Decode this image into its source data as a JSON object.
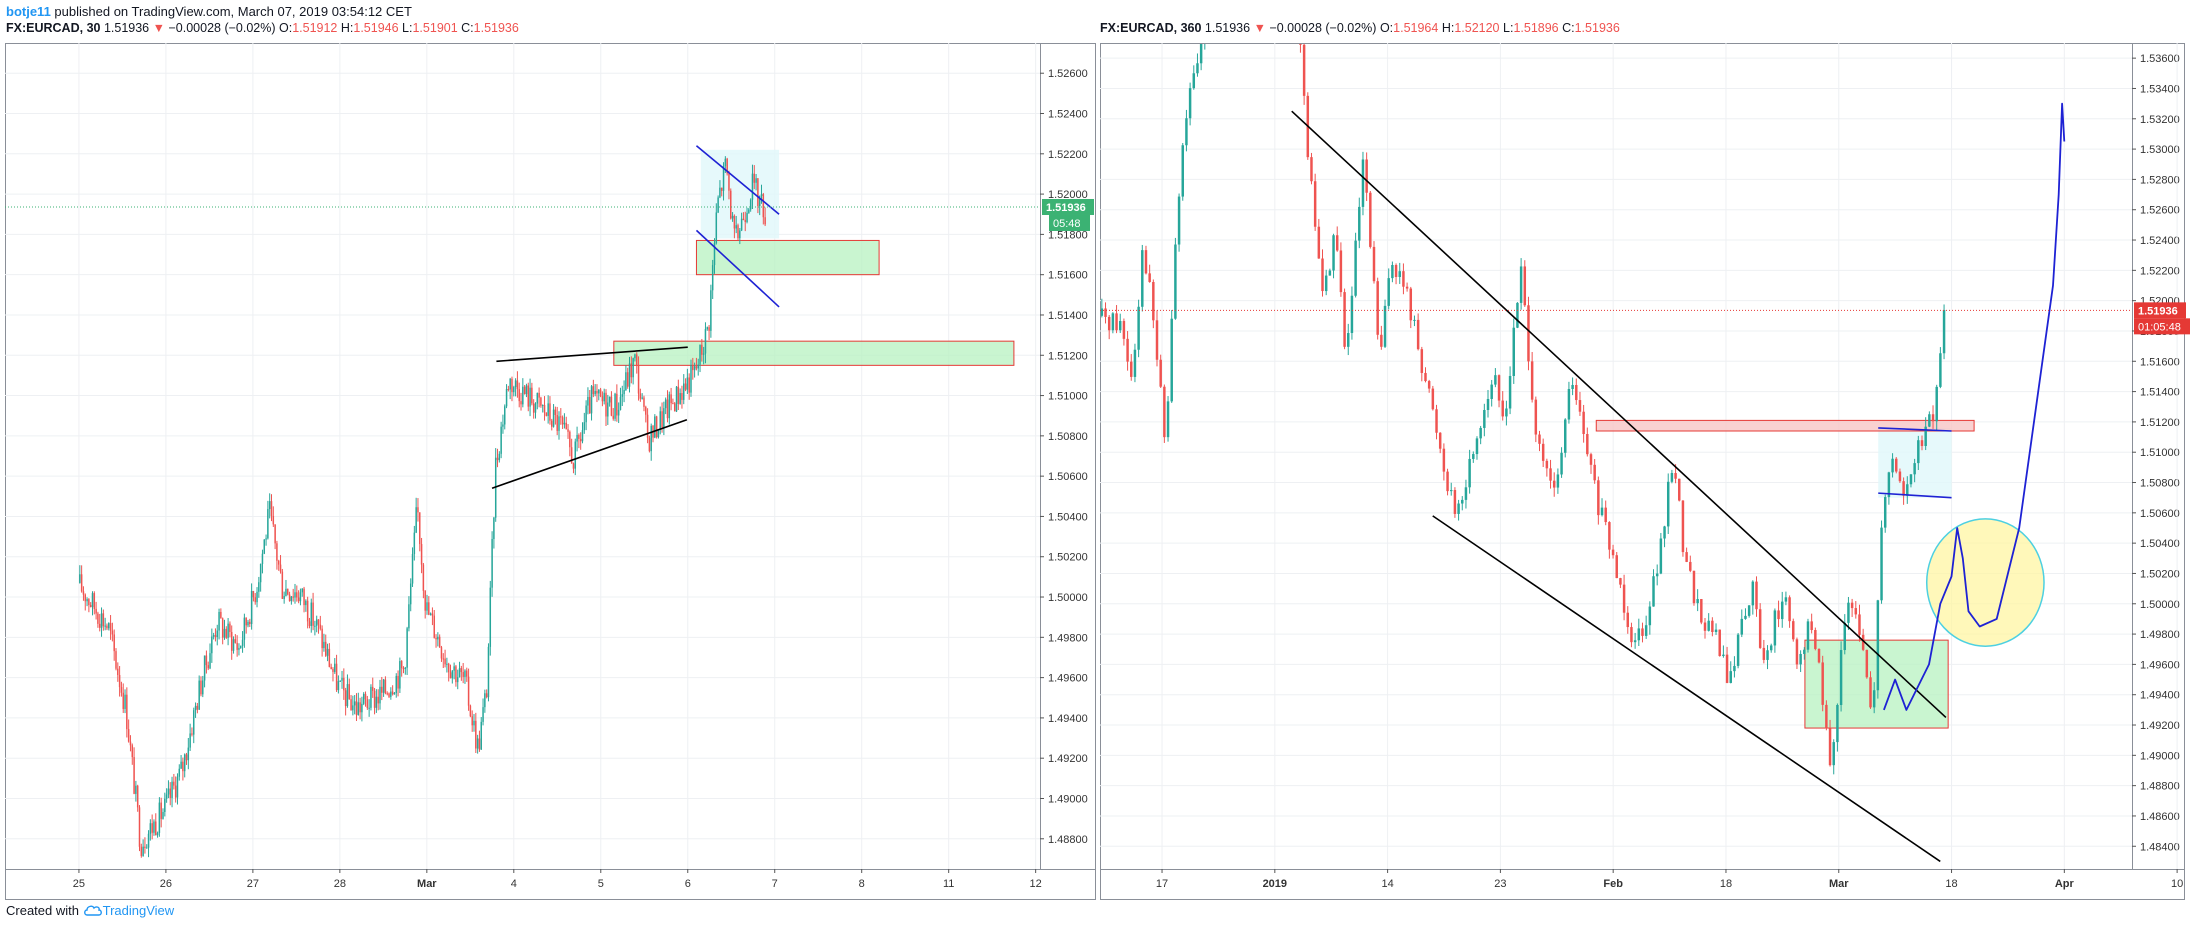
{
  "header": {
    "user": "botje11",
    "published_text": "published on TradingView.com, March 07, 2019 03:54:12 CET"
  },
  "footer": {
    "created_with": "Created with",
    "brand": "TradingView"
  },
  "colors": {
    "up": "#26a69a",
    "down": "#ef5350",
    "trendline": "#000000",
    "channel": "#1e22d4",
    "zone_fill": "#b7f2c0",
    "zone_border": "#e53935",
    "highlight": "#fff59d",
    "grid": "#eef0f3"
  },
  "chart_data": [
    {
      "type": "candlestick",
      "symbol": "FX:EURCAD",
      "interval": "30",
      "last": "1.51936",
      "change": "−0.00028 (−0.02%)",
      "change_arrow": "▼",
      "open": "1.51912",
      "high": "1.51946",
      "low": "1.51901",
      "close": "1.51936",
      "price_badge": "1.51936",
      "timer_badge": "05:48",
      "x_tick_labels": [
        "25",
        "26",
        "27",
        "28",
        "Mar",
        "4",
        "5",
        "6",
        "7",
        "8",
        "11",
        "12"
      ],
      "y_tick_labels": [
        "1.52600",
        "1.52400",
        "1.52200",
        "1.52000",
        "1.51800",
        "1.51600",
        "1.51400",
        "1.51200",
        "1.51000",
        "1.50800",
        "1.50600",
        "1.50400",
        "1.50200",
        "1.50000",
        "1.49800",
        "1.49600",
        "1.49400",
        "1.49200",
        "1.49000",
        "1.48800"
      ],
      "ylim": [
        1.4865,
        1.5275
      ],
      "xlim": [
        -0.85,
        11.05
      ],
      "price_path": [
        [
          0.0,
          1.5007
        ],
        [
          0.35,
          1.4985
        ],
        [
          0.55,
          1.4945
        ],
        [
          0.72,
          1.4878
        ],
        [
          1.0,
          1.4895
        ],
        [
          1.2,
          1.4915
        ],
        [
          1.4,
          1.4955
        ],
        [
          1.6,
          1.4988
        ],
        [
          1.85,
          1.4975
        ],
        [
          2.05,
          1.5005
        ],
        [
          2.2,
          1.5042
        ],
        [
          2.35,
          1.5005
        ],
        [
          2.55,
          1.5002
        ],
        [
          2.75,
          1.4985
        ],
        [
          3.0,
          1.4955
        ],
        [
          3.2,
          1.4945
        ],
        [
          3.5,
          1.4952
        ],
        [
          3.75,
          1.4965
        ],
        [
          3.9,
          1.5045
        ],
        [
          4.0,
          1.4995
        ],
        [
          4.25,
          1.4968
        ],
        [
          4.45,
          1.4958
        ],
        [
          4.6,
          1.4925
        ],
        [
          4.7,
          1.4955
        ],
        [
          4.8,
          1.5065
        ],
        [
          4.95,
          1.5108
        ],
        [
          5.3,
          1.5095
        ],
        [
          5.55,
          1.5085
        ],
        [
          5.7,
          1.5068
        ],
        [
          5.9,
          1.5098
        ],
        [
          6.2,
          1.5095
        ],
        [
          6.4,
          1.5118
        ],
        [
          6.55,
          1.5078
        ],
        [
          6.8,
          1.5095
        ],
        [
          7.1,
          1.5112
        ],
        [
          7.25,
          1.5135
        ],
        [
          7.35,
          1.5195
        ],
        [
          7.45,
          1.5215
        ],
        [
          7.55,
          1.5175
        ],
        [
          7.75,
          1.5205
        ],
        [
          7.9,
          1.5192
        ]
      ],
      "drawings": {
        "channel_upper": [
          [
            7.1,
            1.5224
          ],
          [
            8.05,
            1.519
          ]
        ],
        "channel_lower": [
          [
            7.1,
            1.5182
          ],
          [
            8.05,
            1.5144
          ]
        ],
        "triangle_upper": [
          [
            4.8,
            1.5117
          ],
          [
            7.0,
            1.5124
          ]
        ],
        "triangle_lower": [
          [
            4.75,
            1.5054
          ],
          [
            6.99,
            1.5088
          ]
        ],
        "zones": [
          {
            "x": [
              7.1,
              9.2
            ],
            "y": [
              1.516,
              1.5177
            ]
          },
          {
            "x": [
              6.15,
              10.75
            ],
            "y": [
              1.5115,
              1.5127
            ]
          }
        ],
        "shade": {
          "x": [
            7.15,
            8.05
          ],
          "y": [
            1.5178,
            1.5222
          ]
        }
      }
    },
    {
      "type": "candlestick",
      "symbol": "FX:EURCAD",
      "interval": "360",
      "last": "1.51936",
      "change": "−0.00028 (−0.02%)",
      "change_arrow": "▼",
      "open": "1.51964",
      "high": "1.52120",
      "low": "1.51896",
      "close": "1.51936",
      "price_badge": "1.51936",
      "timer_badge": "01:05:48",
      "x_tick_labels": [
        "17",
        "2019",
        "14",
        "23",
        "Feb",
        "18",
        "Mar",
        "18",
        "Apr",
        "10"
      ],
      "y_tick_labels": [
        "1.53600",
        "1.53400",
        "1.53200",
        "1.53000",
        "1.52800",
        "1.52600",
        "1.52400",
        "1.52200",
        "1.52000",
        "1.51800",
        "1.51600",
        "1.51400",
        "1.51200",
        "1.51000",
        "1.50800",
        "1.50600",
        "1.50400",
        "1.50200",
        "1.50000",
        "1.49800",
        "1.49600",
        "1.49400",
        "1.49200",
        "1.49000",
        "1.48800",
        "1.48600",
        "1.48400"
      ],
      "ylim": [
        1.4825,
        1.537
      ],
      "xlim": [
        -0.55,
        8.6
      ],
      "price_path": [
        [
          -0.55,
          1.519
        ],
        [
          -0.35,
          1.5185
        ],
        [
          -0.25,
          1.515
        ],
        [
          -0.15,
          1.524
        ],
        [
          -0.05,
          1.518
        ],
        [
          0.05,
          1.51
        ],
        [
          0.12,
          1.522
        ],
        [
          0.22,
          1.532
        ],
        [
          0.35,
          1.536
        ],
        [
          0.5,
          1.544
        ],
        [
          1.2,
          1.542
        ],
        [
          1.3,
          1.53
        ],
        [
          1.45,
          1.52
        ],
        [
          1.55,
          1.525
        ],
        [
          1.65,
          1.516
        ],
        [
          1.8,
          1.529
        ],
        [
          1.95,
          1.516
        ],
        [
          2.05,
          1.523
        ],
        [
          2.2,
          1.52
        ],
        [
          2.35,
          1.515
        ],
        [
          2.55,
          1.508
        ],
        [
          2.65,
          1.506
        ],
        [
          2.8,
          1.511
        ],
        [
          2.95,
          1.515
        ],
        [
          3.05,
          1.512
        ],
        [
          3.2,
          1.522
        ],
        [
          3.35,
          1.51
        ],
        [
          3.5,
          1.507
        ],
        [
          3.65,
          1.515
        ],
        [
          3.75,
          1.511
        ],
        [
          3.9,
          1.506
        ],
        [
          4.05,
          1.502
        ],
        [
          4.2,
          1.4975
        ],
        [
          4.3,
          1.499
        ],
        [
          4.45,
          1.504
        ],
        [
          4.55,
          1.51
        ],
        [
          4.65,
          1.503
        ],
        [
          4.8,
          1.499
        ],
        [
          4.95,
          1.4975
        ],
        [
          5.05,
          1.4945
        ],
        [
          5.15,
          1.499
        ],
        [
          5.25,
          1.501
        ],
        [
          5.35,
          1.496
        ],
        [
          5.45,
          1.499
        ],
        [
          5.55,
          1.5
        ],
        [
          5.65,
          1.4955
        ],
        [
          5.75,
          1.4985
        ],
        [
          5.85,
          1.496
        ],
        [
          5.95,
          1.488
        ],
        [
          6.05,
          1.499
        ],
        [
          6.15,
          1.4995
        ],
        [
          6.25,
          1.496
        ],
        [
          6.32,
          1.4925
        ],
        [
          6.4,
          1.5065
        ],
        [
          6.5,
          1.51
        ],
        [
          6.6,
          1.507
        ],
        [
          6.75,
          1.511
        ],
        [
          6.85,
          1.512
        ],
        [
          6.95,
          1.519
        ]
      ],
      "drawings": {
        "downtrend_upper": [
          [
            1.15,
            1.5325
          ],
          [
            6.95,
            1.4925
          ]
        ],
        "channel_lower_diag": [
          [
            2.4,
            1.5058
          ],
          [
            6.9,
            1.483
          ]
        ],
        "range_top": [
          [
            6.35,
            1.5116
          ],
          [
            7.0,
            1.5114
          ]
        ],
        "range_bottom": [
          [
            6.35,
            1.5073
          ],
          [
            7.0,
            1.507
          ]
        ],
        "range_shade": {
          "x": [
            6.35,
            7.0
          ],
          "y": [
            1.507,
            1.5116
          ]
        },
        "resistance_zone": {
          "x": [
            3.85,
            7.2
          ],
          "y": [
            1.5114,
            1.5121
          ]
        },
        "support_zone": {
          "x": [
            5.7,
            6.97
          ],
          "y": [
            1.4918,
            1.4976
          ]
        },
        "highlight_ellipse": {
          "cx": 7.3,
          "cy": 1.5014,
          "rx": 0.52,
          "ry": 0.0042
        },
        "projection": [
          [
            6.4,
            1.493
          ],
          [
            6.5,
            1.495
          ],
          [
            6.6,
            1.493
          ],
          [
            6.8,
            1.496
          ],
          [
            6.9,
            1.5
          ],
          [
            7.0,
            1.5018
          ],
          [
            7.05,
            1.505
          ],
          [
            7.1,
            1.503
          ],
          [
            7.15,
            1.4995
          ],
          [
            7.25,
            1.4985
          ],
          [
            7.4,
            1.499
          ],
          [
            7.6,
            1.505
          ],
          [
            7.75,
            1.513
          ],
          [
            7.9,
            1.521
          ],
          [
            7.95,
            1.527
          ],
          [
            7.98,
            1.533
          ],
          [
            8.0,
            1.5305
          ]
        ]
      }
    }
  ]
}
